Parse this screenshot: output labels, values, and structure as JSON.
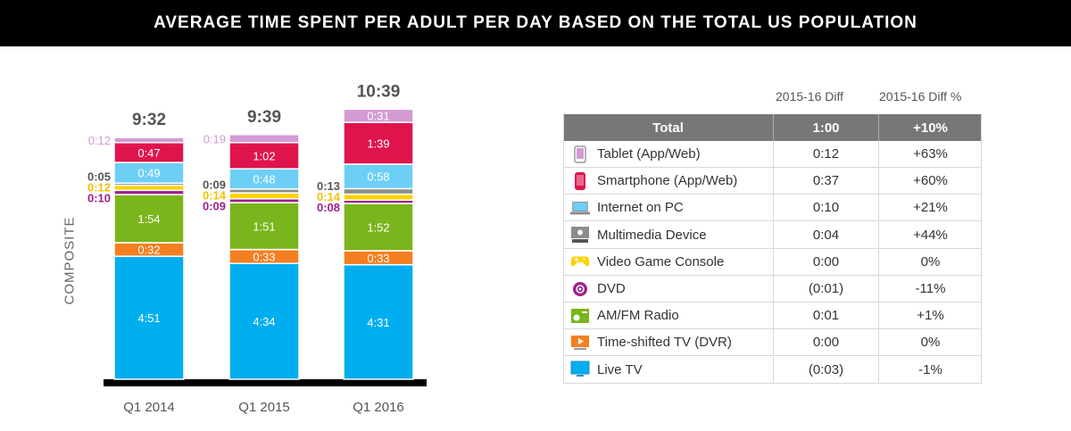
{
  "banner": "AVERAGE TIME SPENT PER ADULT PER DAY BASED ON THE TOTAL US POPULATION",
  "chart_data": {
    "type": "bar",
    "stacked": true,
    "ylabel": "COMPOSITE",
    "categories": [
      "Q1 2014",
      "Q1 2015",
      "Q1 2016"
    ],
    "totals": [
      "9:32",
      "9:39",
      "10:39"
    ],
    "series": [
      {
        "name": "Live TV",
        "color": "#00aeef",
        "values": [
          291,
          274,
          271
        ],
        "labels": [
          "4:51",
          "4:34",
          "4:31"
        ]
      },
      {
        "name": "Time-shifted TV (DVR)",
        "color": "#f47f20",
        "values": [
          32,
          33,
          33
        ],
        "labels": [
          "0:32",
          "0:33",
          "0:33"
        ]
      },
      {
        "name": "AM/FM Radio",
        "color": "#7ab51d",
        "values": [
          114,
          111,
          112
        ],
        "labels": [
          "1:54",
          "1:51",
          "1:52"
        ]
      },
      {
        "name": "DVD",
        "color": "#9e1f8e",
        "values": [
          10,
          9,
          8
        ],
        "labels": [
          "0:10",
          "0:09",
          "0:08"
        ]
      },
      {
        "name": "Video Game Console",
        "color": "#ffd200",
        "values": [
          12,
          14,
          14
        ],
        "labels": [
          "0:12",
          "0:14",
          "0:14"
        ]
      },
      {
        "name": "Multimedia Device",
        "color": "#8c8c8c",
        "values": [
          5,
          9,
          13
        ],
        "labels": [
          "0:05",
          "0:09",
          "0:13"
        ]
      },
      {
        "name": "Internet on PC",
        "color": "#6dcff6",
        "values": [
          49,
          48,
          58
        ],
        "labels": [
          "0:49",
          "0:48",
          "0:58"
        ]
      },
      {
        "name": "Smartphone (App/Web)",
        "color": "#e0144c",
        "values": [
          47,
          62,
          99
        ],
        "labels": [
          "0:47",
          "1:02",
          "1:39"
        ]
      },
      {
        "name": "Tablet (App/Web)",
        "color": "#d39ad3",
        "values": [
          12,
          19,
          31
        ],
        "labels": [
          "0:12",
          "0:19",
          "0:31"
        ]
      }
    ]
  },
  "table": {
    "col2_header": "2015-16 Diff",
    "col3_header": "2015-16 Diff %",
    "total": {
      "label": "Total",
      "diff": "1:00",
      "pct": "+10%"
    },
    "rows": [
      {
        "label": "Tablet (App/Web)",
        "diff": "0:12",
        "pct": "+63%",
        "icon": "tablet-icon",
        "color": "#d39ad3"
      },
      {
        "label": "Smartphone (App/Web)",
        "diff": "0:37",
        "pct": "+60%",
        "icon": "smartphone-icon",
        "color": "#e0144c"
      },
      {
        "label": "Internet on PC",
        "diff": "0:10",
        "pct": "+21%",
        "icon": "laptop-icon",
        "color": "#6dcff6"
      },
      {
        "label": "Multimedia Device",
        "diff": "0:04",
        "pct": "+44%",
        "icon": "multimedia-device-icon",
        "color": "#8c8c8c"
      },
      {
        "label": "Video Game Console",
        "diff": "0:00",
        "pct": "0%",
        "icon": "gamepad-icon",
        "color": "#ffd200"
      },
      {
        "label": "DVD",
        "diff": "(0:01)",
        "pct": "-11%",
        "icon": "dvd-icon",
        "color": "#9e1f8e"
      },
      {
        "label": "AM/FM Radio",
        "diff": "0:01",
        "pct": "+1%",
        "icon": "radio-icon",
        "color": "#7ab51d"
      },
      {
        "label": "Time-shifted TV (DVR)",
        "diff": "0:00",
        "pct": "0%",
        "icon": "dvr-icon",
        "color": "#f47f20"
      },
      {
        "label": "Live TV",
        "diff": "(0:03)",
        "pct": "-1%",
        "icon": "tv-icon",
        "color": "#00aeef"
      }
    ]
  }
}
